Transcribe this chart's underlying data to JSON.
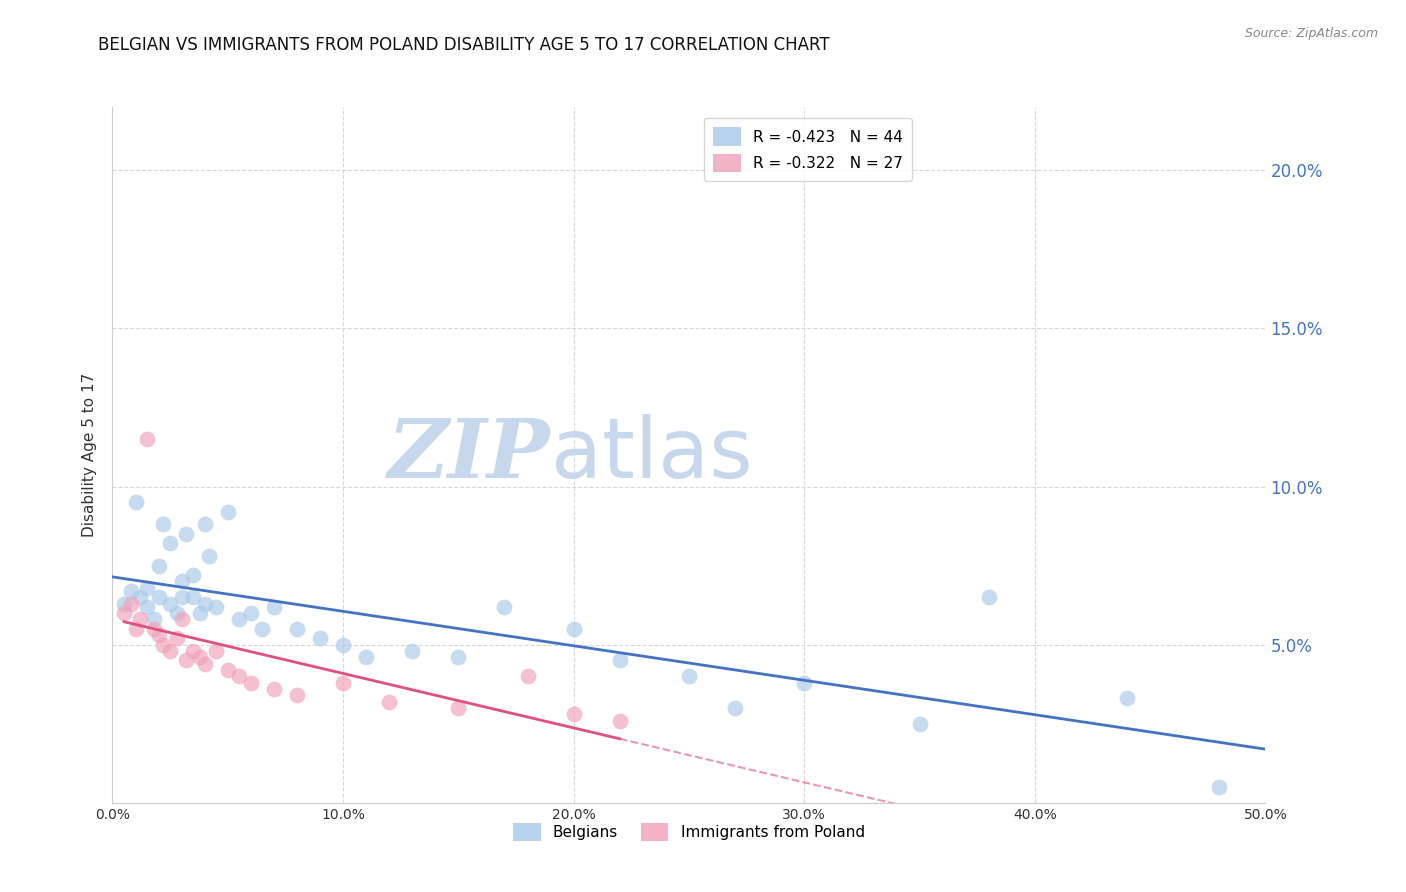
{
  "title": "BELGIAN VS IMMIGRANTS FROM POLAND DISABILITY AGE 5 TO 17 CORRELATION CHART",
  "source": "Source: ZipAtlas.com",
  "ylabel": "Disability Age 5 to 17",
  "xlim": [
    0.0,
    0.5
  ],
  "ylim": [
    0.0,
    0.22
  ],
  "yticks": [
    0.0,
    0.05,
    0.1,
    0.15,
    0.2
  ],
  "ytick_labels": [
    "",
    "5.0%",
    "10.0%",
    "15.0%",
    "20.0%"
  ],
  "xticks": [
    0.0,
    0.1,
    0.2,
    0.3,
    0.4,
    0.5
  ],
  "xtick_labels": [
    "0.0%",
    "10.0%",
    "20.0%",
    "30.0%",
    "40.0%",
    "50.0%"
  ],
  "legend_r1": "R = -0.423   N = 44",
  "legend_r2": "R = -0.322   N = 27",
  "legend_bottom_1": "Belgians",
  "legend_bottom_2": "Immigrants from Poland",
  "belgians_x": [
    0.005,
    0.008,
    0.01,
    0.012,
    0.015,
    0.015,
    0.018,
    0.02,
    0.02,
    0.022,
    0.025,
    0.025,
    0.028,
    0.03,
    0.03,
    0.032,
    0.035,
    0.035,
    0.038,
    0.04,
    0.04,
    0.042,
    0.045,
    0.05,
    0.055,
    0.06,
    0.065,
    0.07,
    0.08,
    0.09,
    0.1,
    0.11,
    0.13,
    0.15,
    0.17,
    0.2,
    0.22,
    0.25,
    0.27,
    0.3,
    0.35,
    0.38,
    0.44,
    0.48
  ],
  "belgians_y": [
    0.063,
    0.067,
    0.095,
    0.065,
    0.062,
    0.068,
    0.058,
    0.065,
    0.075,
    0.088,
    0.082,
    0.063,
    0.06,
    0.065,
    0.07,
    0.085,
    0.072,
    0.065,
    0.06,
    0.063,
    0.088,
    0.078,
    0.062,
    0.092,
    0.058,
    0.06,
    0.055,
    0.062,
    0.055,
    0.052,
    0.05,
    0.046,
    0.048,
    0.046,
    0.062,
    0.055,
    0.045,
    0.04,
    0.03,
    0.038,
    0.025,
    0.065,
    0.033,
    0.005
  ],
  "poland_x": [
    0.005,
    0.008,
    0.01,
    0.012,
    0.015,
    0.018,
    0.02,
    0.022,
    0.025,
    0.028,
    0.03,
    0.032,
    0.035,
    0.038,
    0.04,
    0.045,
    0.05,
    0.055,
    0.06,
    0.07,
    0.08,
    0.1,
    0.12,
    0.15,
    0.18,
    0.2,
    0.22
  ],
  "poland_y": [
    0.06,
    0.063,
    0.055,
    0.058,
    0.115,
    0.055,
    0.053,
    0.05,
    0.048,
    0.052,
    0.058,
    0.045,
    0.048,
    0.046,
    0.044,
    0.048,
    0.042,
    0.04,
    0.038,
    0.036,
    0.034,
    0.038,
    0.032,
    0.03,
    0.04,
    0.028,
    0.026
  ],
  "blue_color": "#a8c8e8",
  "pink_color": "#f0a0b8",
  "blue_line_color": "#4472c4",
  "pink_line_color": "#e05080",
  "watermark_zip_color": "#c8d8ec",
  "watermark_atlas_color": "#c8d8ec",
  "right_axis_color": "#4472c4",
  "title_fontsize": 12,
  "axis_label_fontsize": 11,
  "scatter_size": 130,
  "scatter_alpha": 0.65,
  "grid_color": "#d8d8d8",
  "spine_color": "#cccccc"
}
